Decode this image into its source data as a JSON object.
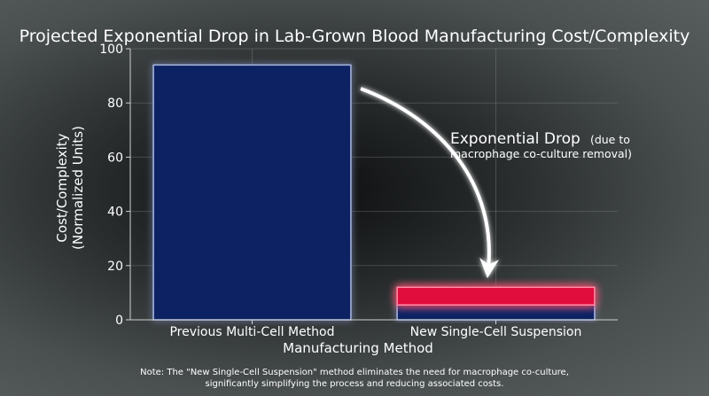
{
  "chart_data": {
    "type": "bar",
    "title": "Projected Exponential Drop in Lab-Grown Blood Manufacturing Cost/Complexity",
    "xlabel": "Manufacturing Method",
    "ylabel_line1": "Cost/Complexity",
    "ylabel_line2": "(Normalized Units)",
    "categories": [
      "Previous Multi-Cell Method",
      "New Single-Cell Suspension"
    ],
    "values": [
      94,
      5.5
    ],
    "highlight": {
      "category_index": 1,
      "base": 5.5,
      "top": 12,
      "color": "#e0103e"
    },
    "bar_color": "#0a2464",
    "ylim": [
      0,
      100
    ],
    "yticks": [
      0,
      20,
      40,
      60,
      80,
      100
    ],
    "grid": true,
    "annotation": {
      "main": "Exponential Drop",
      "detail_a": "(due to",
      "detail_b": "macrophage co-culture removal)"
    },
    "note_line1": "Note: The \"New Single-Cell Suspension\" method eliminates the need for macrophage co-culture,",
    "note_line2": "significantly simplifying the process and reducing associated costs."
  }
}
